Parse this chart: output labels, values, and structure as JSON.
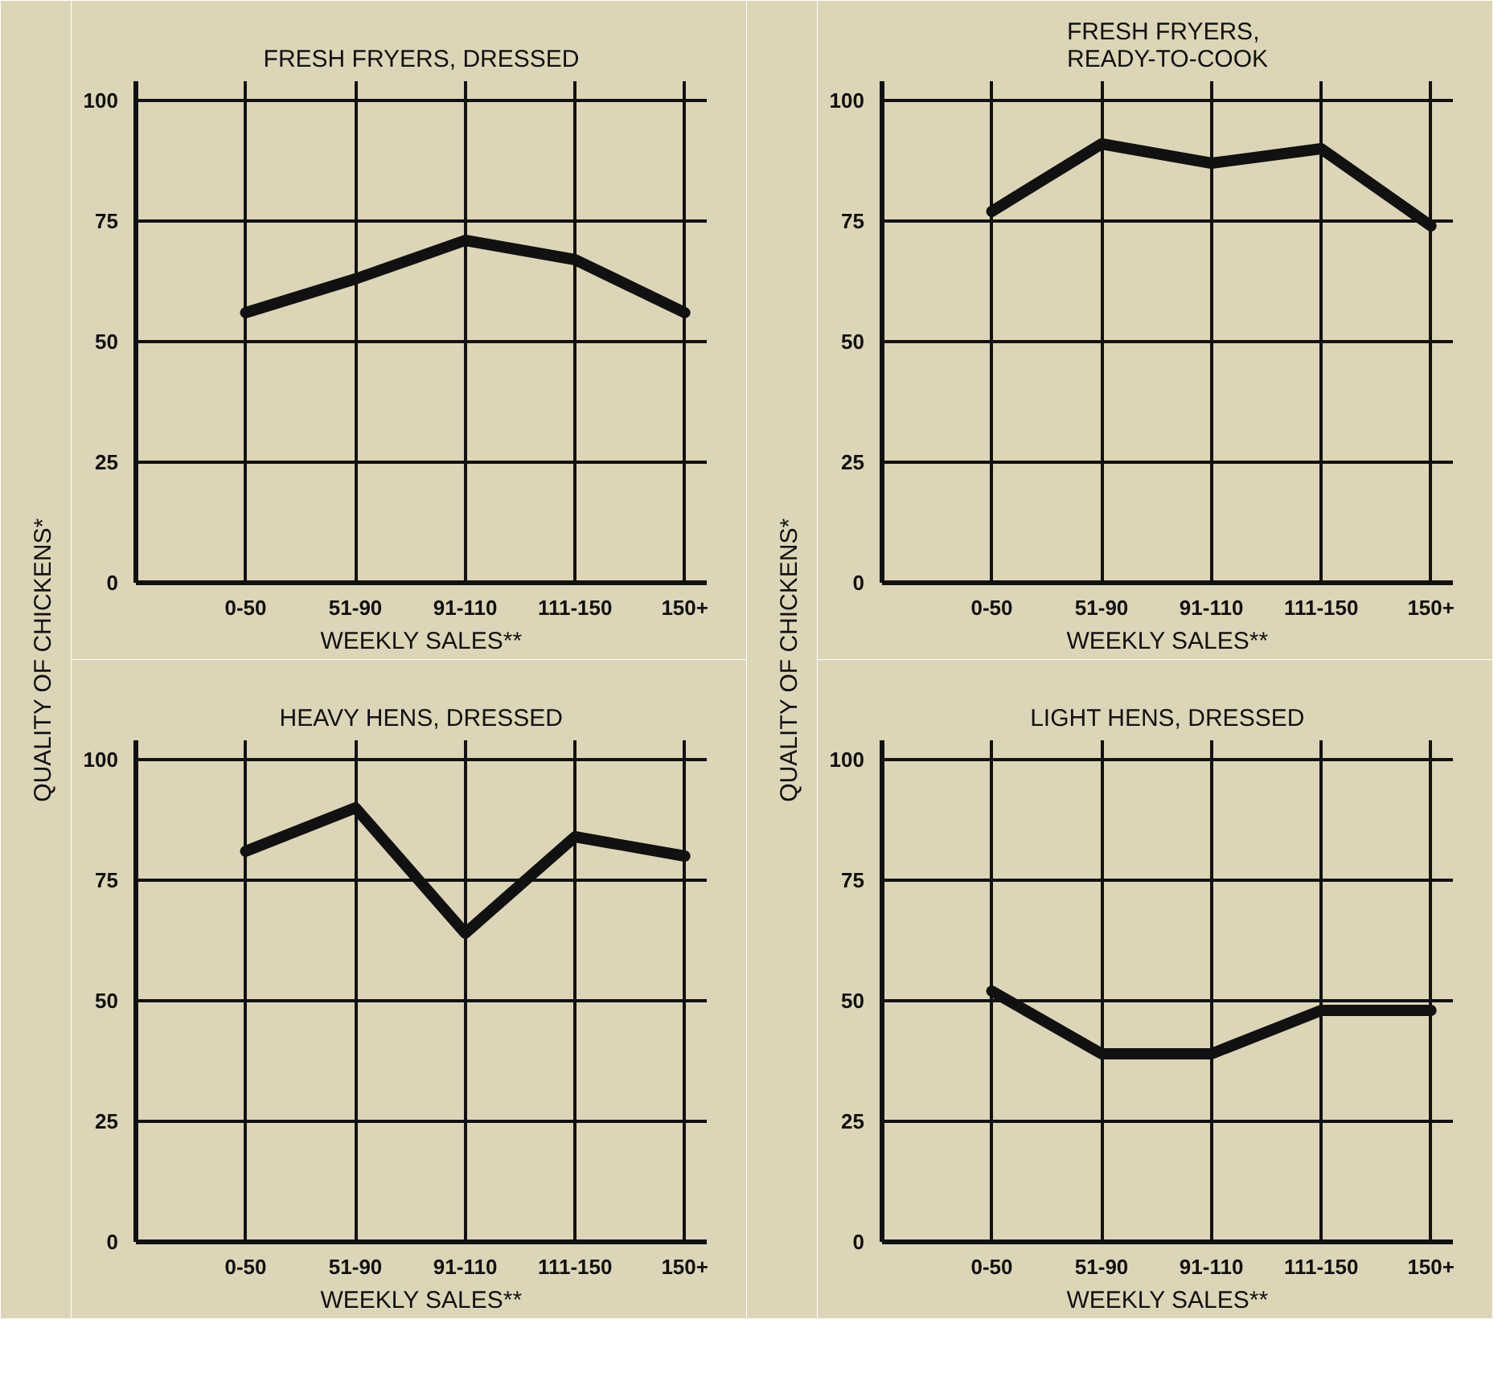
{
  "chart_data": [
    {
      "type": "line",
      "title": "FRESH FRYERS, DRESSED",
      "xlabel": "WEEKLY SALES**",
      "ylabel": "QUALITY OF CHICKENS*",
      "categories": [
        "0-50",
        "51-90",
        "91-110",
        "111-150",
        "150+"
      ],
      "series": [
        {
          "color": "#111111",
          "values": [
            56,
            63,
            71,
            67,
            56
          ]
        }
      ],
      "ylim": [
        0,
        104
      ],
      "yticks": [
        0,
        25,
        50,
        75,
        100
      ],
      "grid": true
    },
    {
      "type": "line",
      "title": "FRESH FRYERS,\nREADY-TO-COOK",
      "xlabel": "WEEKLY SALES**",
      "ylabel": "QUALITY OF CHICKENS*",
      "categories": [
        "0-50",
        "51-90",
        "91-110",
        "111-150",
        "150+"
      ],
      "series": [
        {
          "color": "#111111",
          "values": [
            77,
            91,
            87,
            90,
            74
          ]
        }
      ],
      "ylim": [
        0,
        104
      ],
      "yticks": [
        0,
        25,
        50,
        75,
        100
      ],
      "grid": true
    },
    {
      "type": "line",
      "title": "HEAVY HENS, DRESSED",
      "xlabel": "WEEKLY SALES**",
      "categories": [
        "0-50",
        "51-90",
        "91-110",
        "111-150",
        "150+"
      ],
      "series": [
        {
          "color": "#111111",
          "values": [
            81,
            90,
            64,
            84,
            80
          ]
        }
      ],
      "ylim": [
        0,
        104
      ],
      "yticks": [
        0,
        25,
        50,
        75,
        100
      ],
      "grid": true
    },
    {
      "type": "line",
      "title": "LIGHT HENS, DRESSED",
      "xlabel": "WEEKLY SALES**",
      "categories": [
        "0-50",
        "51-90",
        "91-110",
        "111-150",
        "150+"
      ],
      "series": [
        {
          "color": "#111111",
          "values": [
            52,
            39,
            39,
            48,
            48
          ]
        }
      ],
      "ylim": [
        0,
        104
      ],
      "yticks": [
        0,
        25,
        50,
        75,
        100
      ],
      "grid": true
    }
  ]
}
